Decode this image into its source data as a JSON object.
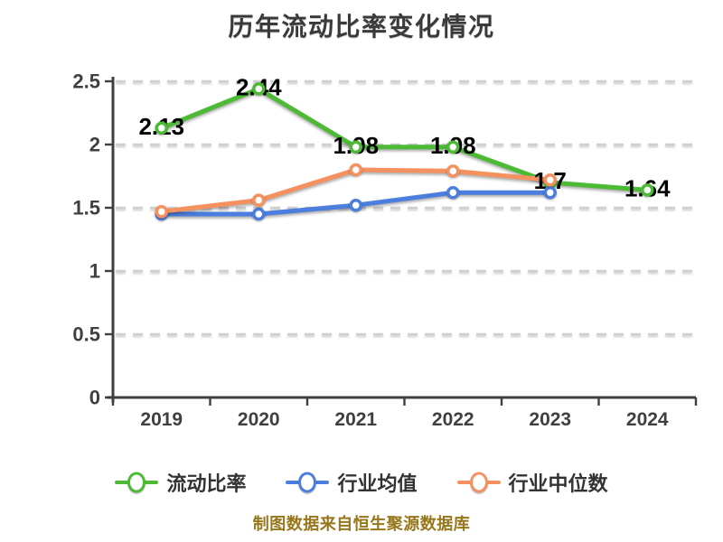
{
  "title": "历年流动比率变化情况",
  "footer": "制图数据来自恒生聚源数据库",
  "colors": {
    "background": "#ffffff",
    "title_text": "#3a3a3a",
    "axis": "#3f3f3f",
    "grid": "#cfcfcf",
    "data_label": "#000000",
    "legend_text": "#333333",
    "footer_text": "#97771b"
  },
  "chart_data": {
    "type": "line",
    "title": "历年流动比率变化情况",
    "categories": [
      "2019",
      "2020",
      "2021",
      "2022",
      "2023",
      "2024"
    ],
    "ylim": [
      0,
      2.5
    ],
    "y_ticks": [
      0,
      0.5,
      1,
      1.5,
      2,
      2.5
    ],
    "y_tick_labels": [
      "0",
      "0.5",
      "1",
      "1.5",
      "2",
      "2.5"
    ],
    "grid": "horizontal-dashed",
    "legend_position": "bottom",
    "marker_style": "hollow-circle",
    "series": [
      {
        "key": "current-ratio",
        "name": "流动比率",
        "color": "#4cba35",
        "values": [
          2.13,
          2.44,
          1.98,
          1.98,
          1.7,
          1.64
        ],
        "point_labels": [
          "2.13",
          "2.44",
          "1.98",
          "1.98",
          "1.7",
          "1.64"
        ]
      },
      {
        "key": "industry-mean",
        "name": "行业均值",
        "color": "#4c7ede",
        "values": [
          1.45,
          1.45,
          1.52,
          1.62,
          1.62,
          null
        ],
        "point_labels": null
      },
      {
        "key": "industry-median",
        "name": "行业中位数",
        "color": "#f5915f",
        "values": [
          1.47,
          1.56,
          1.8,
          1.79,
          1.72,
          null
        ],
        "point_labels": null
      }
    ]
  }
}
